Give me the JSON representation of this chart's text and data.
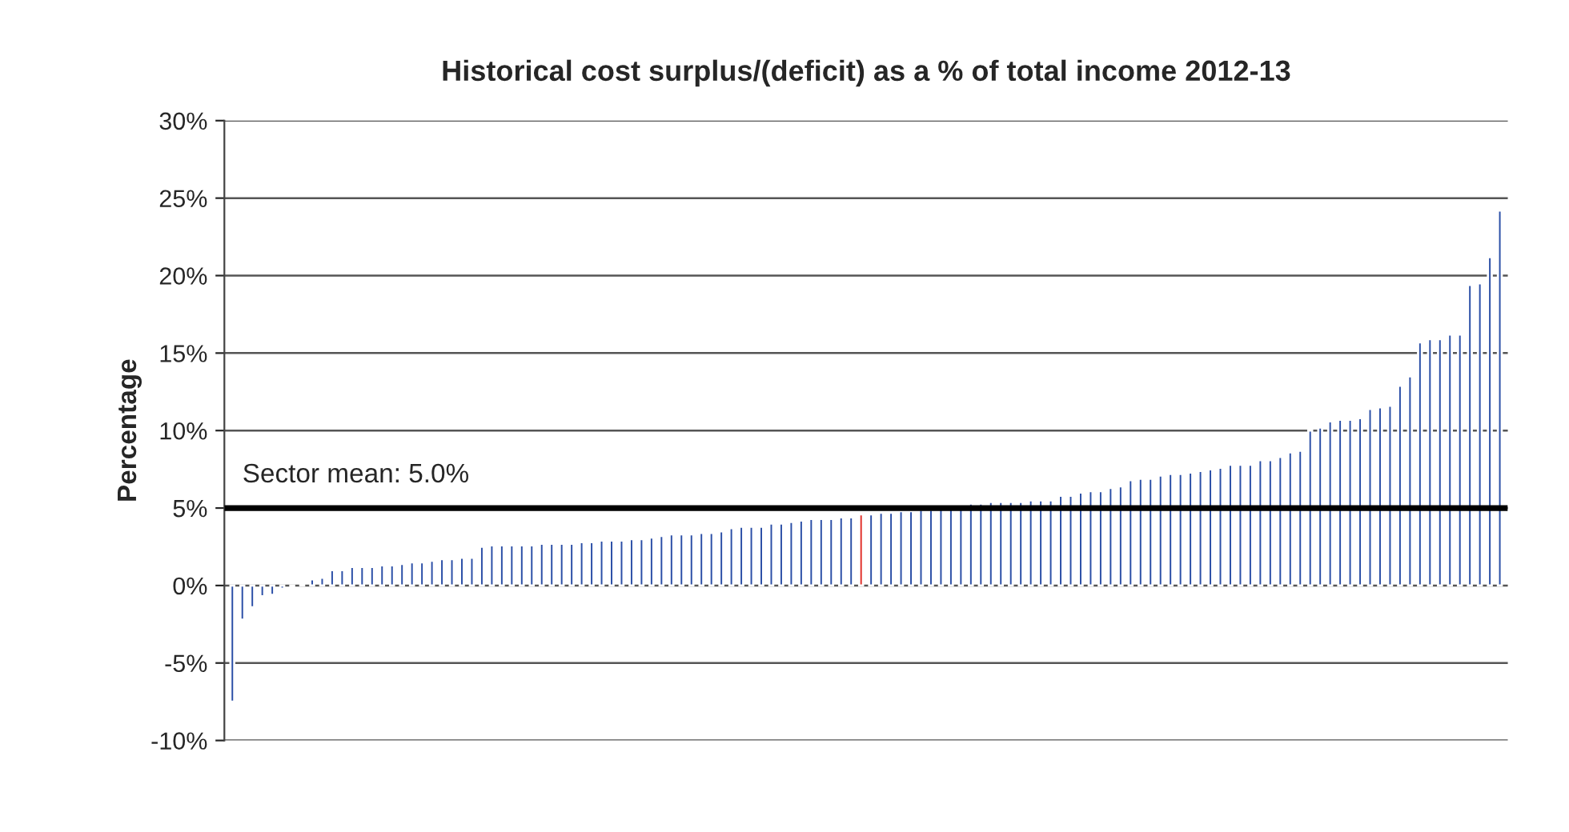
{
  "chart_data": {
    "type": "bar",
    "title": "Historical cost surplus/(deficit) as a % of total income 2012-13",
    "ylabel": "Percentage",
    "categories": [
      null,
      null,
      null,
      null,
      null,
      null,
      null,
      null,
      null,
      null,
      null,
      null,
      null,
      null,
      null,
      null,
      null,
      null,
      null,
      null,
      null,
      null,
      null,
      null,
      null,
      null,
      null,
      null,
      null,
      null,
      null,
      null,
      null,
      null,
      null,
      null,
      null,
      null,
      null,
      null,
      null,
      null,
      null,
      null,
      null,
      null,
      null,
      null,
      null,
      null,
      null,
      null,
      null,
      null,
      null,
      null,
      null,
      null,
      null,
      null,
      null,
      null,
      null,
      null,
      null,
      null,
      null,
      null,
      null,
      null,
      null,
      null,
      null,
      null,
      null,
      null,
      null,
      null,
      null,
      null,
      null,
      null,
      null,
      null,
      null,
      null,
      null,
      null,
      null,
      null,
      null,
      null,
      null,
      null,
      null,
      null,
      null,
      null,
      null,
      null,
      null,
      null,
      null,
      null,
      null,
      null,
      null,
      null,
      null,
      null,
      null,
      null,
      null,
      null,
      null,
      null,
      null,
      null,
      null,
      null,
      null,
      null,
      null,
      null,
      null,
      null,
      null,
      null
    ],
    "values": [
      -7.5,
      -2.2,
      -1.4,
      -0.7,
      -0.6,
      -0.2,
      -0.1,
      0.1,
      0.4,
      0.5,
      1.0,
      1.0,
      1.2,
      1.2,
      1.2,
      1.3,
      1.3,
      1.4,
      1.5,
      1.5,
      1.6,
      1.7,
      1.7,
      1.8,
      1.8,
      2.5,
      2.6,
      2.6,
      2.6,
      2.6,
      2.6,
      2.7,
      2.7,
      2.7,
      2.7,
      2.8,
      2.8,
      2.9,
      2.9,
      2.9,
      3.0,
      3.0,
      3.1,
      3.2,
      3.3,
      3.3,
      3.3,
      3.4,
      3.4,
      3.5,
      3.7,
      3.8,
      3.8,
      3.8,
      4.0,
      4.0,
      4.1,
      4.2,
      4.3,
      4.3,
      4.3,
      4.4,
      4.4,
      4.6,
      4.6,
      4.7,
      4.7,
      4.8,
      4.8,
      4.9,
      4.9,
      5.0,
      5.0,
      5.2,
      5.3,
      5.3,
      5.4,
      5.4,
      5.4,
      5.4,
      5.5,
      5.5,
      5.5,
      5.8,
      5.8,
      6.0,
      6.1,
      6.1,
      6.3,
      6.4,
      6.8,
      6.9,
      6.9,
      7.1,
      7.2,
      7.2,
      7.3,
      7.4,
      7.5,
      7.6,
      7.8,
      7.8,
      7.8,
      8.1,
      8.1,
      8.3,
      8.6,
      8.7,
      10.0,
      10.2,
      10.6,
      10.7,
      10.7,
      10.8,
      11.4,
      11.5,
      11.6,
      12.9,
      13.5,
      15.7,
      15.9,
      15.9,
      16.2,
      16.2,
      19.4,
      19.5,
      21.2,
      24.2
    ],
    "colors": [
      "#2a4ea6",
      "#2a4ea6",
      "#2a4ea6",
      "#2a4ea6",
      "#2a4ea6",
      "#2a4ea6",
      "#2a4ea6",
      "#2a4ea6",
      "#2a4ea6",
      "#2a4ea6",
      "#2a4ea6",
      "#2a4ea6",
      "#2a4ea6",
      "#2a4ea6",
      "#2a4ea6",
      "#2a4ea6",
      "#2a4ea6",
      "#2a4ea6",
      "#2a4ea6",
      "#2a4ea6",
      "#2a4ea6",
      "#2a4ea6",
      "#2a4ea6",
      "#2a4ea6",
      "#2a4ea6",
      "#2a4ea6",
      "#2a4ea6",
      "#2a4ea6",
      "#2a4ea6",
      "#2a4ea6",
      "#2a4ea6",
      "#2a4ea6",
      "#2a4ea6",
      "#2a4ea6",
      "#2a4ea6",
      "#2a4ea6",
      "#2a4ea6",
      "#2a4ea6",
      "#2a4ea6",
      "#2a4ea6",
      "#2a4ea6",
      "#2a4ea6",
      "#2a4ea6",
      "#2a4ea6",
      "#2a4ea6",
      "#2a4ea6",
      "#2a4ea6",
      "#2a4ea6",
      "#2a4ea6",
      "#2a4ea6",
      "#2a4ea6",
      "#2a4ea6",
      "#2a4ea6",
      "#2a4ea6",
      "#2a4ea6",
      "#2a4ea6",
      "#2a4ea6",
      "#2a4ea6",
      "#2a4ea6",
      "#2a4ea6",
      "#2a4ea6",
      "#2a4ea6",
      "#2a4ea6",
      "#e0302a",
      "#2a4ea6",
      "#2a4ea6",
      "#2a4ea6",
      "#2a4ea6",
      "#2a4ea6",
      "#2a4ea6",
      "#2a4ea6",
      "#2a4ea6",
      "#2a4ea6",
      "#2a4ea6",
      "#2a4ea6",
      "#2a4ea6",
      "#2a4ea6",
      "#2a4ea6",
      "#2a4ea6",
      "#2a4ea6",
      "#2a4ea6",
      "#2a4ea6",
      "#2a4ea6",
      "#2a4ea6",
      "#2a4ea6",
      "#2a4ea6",
      "#2a4ea6",
      "#2a4ea6",
      "#2a4ea6",
      "#2a4ea6",
      "#2a4ea6",
      "#2a4ea6",
      "#2a4ea6",
      "#2a4ea6",
      "#2a4ea6",
      "#2a4ea6",
      "#2a4ea6",
      "#2a4ea6",
      "#2a4ea6",
      "#2a4ea6",
      "#2a4ea6",
      "#2a4ea6",
      "#2a4ea6",
      "#2a4ea6",
      "#2a4ea6",
      "#2a4ea6",
      "#2a4ea6",
      "#2a4ea6",
      "#2a4ea6",
      "#2a4ea6",
      "#2a4ea6",
      "#2a4ea6",
      "#2a4ea6",
      "#2a4ea6",
      "#2a4ea6",
      "#2a4ea6",
      "#2a4ea6",
      "#2a4ea6",
      "#2a4ea6",
      "#2a4ea6",
      "#2a4ea6",
      "#2a4ea6",
      "#2a4ea6",
      "#2a4ea6",
      "#2a4ea6",
      "#2a4ea6",
      "#2a4ea6",
      "#2a4ea6"
    ],
    "ylim": [
      -10,
      30
    ],
    "yticks": [
      {
        "value": -10,
        "label": "-10%"
      },
      {
        "value": -5,
        "label": "-5%"
      },
      {
        "value": 0,
        "label": "0%"
      },
      {
        "value": 5,
        "label": "5%"
      },
      {
        "value": 10,
        "label": "10%"
      },
      {
        "value": 15,
        "label": "15%"
      },
      {
        "value": 20,
        "label": "20%"
      },
      {
        "value": 25,
        "label": "25%"
      },
      {
        "value": 30,
        "label": "30%"
      }
    ],
    "ref_lines": [
      {
        "axis": "y",
        "value": 5.0,
        "label": "Sector mean: 5.0%",
        "color": "#000000",
        "line_style": "solid"
      }
    ],
    "grid": "y",
    "tick_labels": "y"
  }
}
